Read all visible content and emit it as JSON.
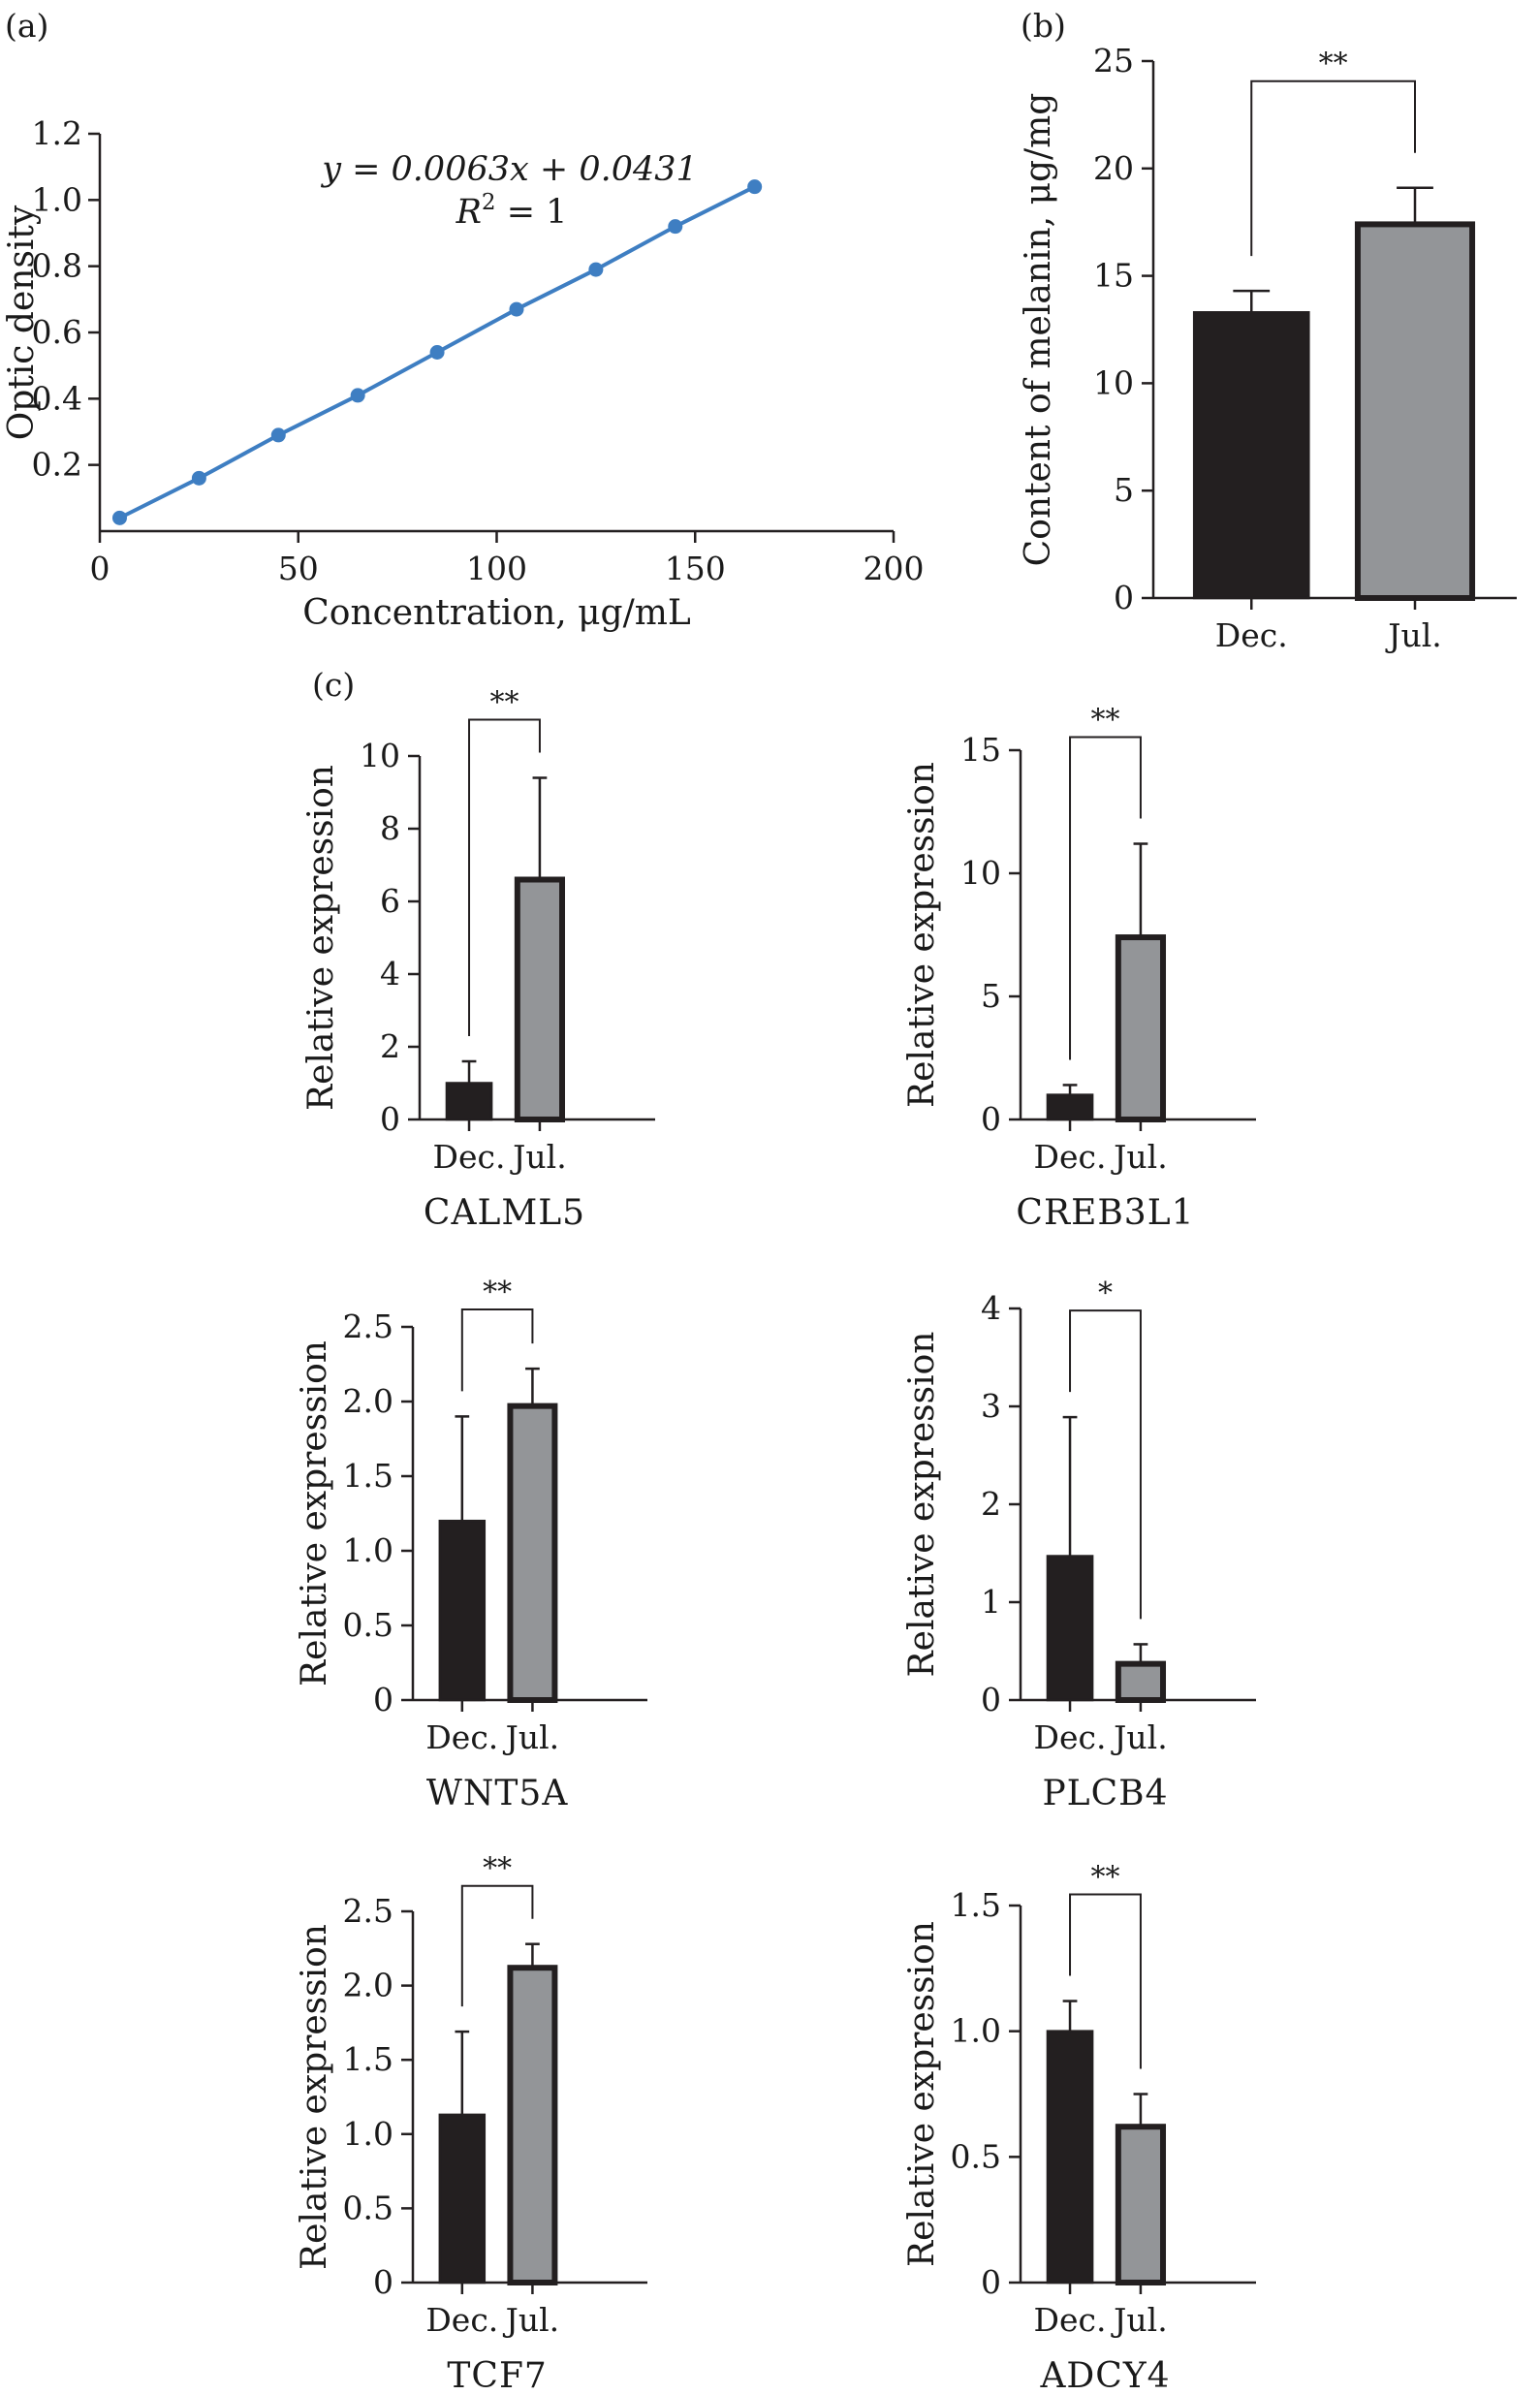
{
  "figure": {
    "panel_labels": [
      "(a)",
      "(b)",
      "(c)"
    ]
  },
  "chart_data": [
    {
      "panel": "(a)",
      "type": "line",
      "xlabel": "Concentration, μg/mL",
      "ylabel": "Optic density",
      "xlim": [
        0,
        200
      ],
      "ylim": [
        0,
        1.2
      ],
      "xticks": [
        0,
        50,
        100,
        150,
        200
      ],
      "yticks": [
        0.2,
        0.4,
        0.6,
        0.8,
        1.0,
        1.2
      ],
      "equation_y": "y = 0.0063x + 0.0431",
      "equation_r2": "R",
      "equation_r2_sup": "2",
      "equation_r2_val": " = 1",
      "x": [
        5,
        25,
        45,
        65,
        85,
        105,
        125,
        145,
        165
      ],
      "y": [
        0.04,
        0.16,
        0.29,
        0.41,
        0.54,
        0.67,
        0.79,
        0.92,
        1.04
      ],
      "color": "#3e7ec2"
    },
    {
      "panel": "(b)",
      "type": "bar",
      "categories": [
        "Dec.",
        "Jul."
      ],
      "values": [
        13.3,
        17.4
      ],
      "errors": [
        1.0,
        1.7
      ],
      "ylabel": "Content of melanin, μg/mg",
      "ylim": [
        0,
        25
      ],
      "yticks": [
        0,
        5,
        10,
        15,
        20,
        25
      ],
      "significance": "**",
      "colors": [
        "#231f20",
        "#939598"
      ]
    },
    {
      "panel": "(c)",
      "gene": "CALML5",
      "type": "bar",
      "categories": [
        "Dec.",
        "Jul."
      ],
      "values": [
        1.0,
        6.6
      ],
      "errors": [
        0.6,
        2.8
      ],
      "ylabel": "Relative expression",
      "ylim": [
        0,
        10
      ],
      "yticks": [
        0,
        2,
        4,
        6,
        8,
        10
      ],
      "significance": "**",
      "colors": [
        "#231f20",
        "#939598"
      ]
    },
    {
      "panel": "(c)",
      "gene": "CREB3L1",
      "type": "bar",
      "categories": [
        "Dec.",
        "Jul."
      ],
      "values": [
        1.0,
        7.4
      ],
      "errors": [
        0.4,
        3.8
      ],
      "ylabel": "Relative expression",
      "ylim": [
        0,
        15
      ],
      "yticks": [
        0,
        5,
        10,
        15
      ],
      "significance": "**",
      "colors": [
        "#231f20",
        "#939598"
      ]
    },
    {
      "panel": "(c)",
      "gene": "WNT5A",
      "type": "bar",
      "categories": [
        "Dec.",
        "Jul."
      ],
      "values": [
        1.2,
        1.97
      ],
      "errors": [
        0.7,
        0.25
      ],
      "ylabel": "Relative expression",
      "ylim": [
        0,
        2.5
      ],
      "yticks": [
        "0",
        "0.5",
        "1.0",
        "1.5",
        "2.0",
        "2.5"
      ],
      "significance": "**",
      "colors": [
        "#231f20",
        "#939598"
      ]
    },
    {
      "panel": "(c)",
      "gene": "PLCB4",
      "type": "bar",
      "categories": [
        "Dec.",
        "Jul."
      ],
      "values": [
        1.47,
        0.37
      ],
      "errors": [
        1.42,
        0.2
      ],
      "ylabel": "Relative expression",
      "ylim": [
        0,
        4
      ],
      "yticks": [
        0,
        1,
        2,
        3,
        4
      ],
      "significance": "*",
      "colors": [
        "#231f20",
        "#939598"
      ]
    },
    {
      "panel": "(c)",
      "gene": "TCF7",
      "type": "bar",
      "categories": [
        "Dec.",
        "Jul."
      ],
      "values": [
        1.13,
        2.12
      ],
      "errors": [
        0.56,
        0.16
      ],
      "ylabel": "Relative expression",
      "ylim": [
        0,
        2.5
      ],
      "yticks": [
        "0",
        "0.5",
        "1.0",
        "1.5",
        "2.0",
        "2.5"
      ],
      "significance": "**",
      "colors": [
        "#231f20",
        "#939598"
      ]
    },
    {
      "panel": "(c)",
      "gene": "ADCY4",
      "type": "bar",
      "categories": [
        "Dec.",
        "Jul."
      ],
      "values": [
        1.0,
        0.62
      ],
      "errors": [
        0.12,
        0.13
      ],
      "ylabel": "Relative expression",
      "ylim": [
        0,
        1.5
      ],
      "yticks": [
        "0",
        "0.5",
        "1.0",
        "1.5"
      ],
      "significance": "**",
      "colors": [
        "#231f20",
        "#939598"
      ]
    }
  ]
}
